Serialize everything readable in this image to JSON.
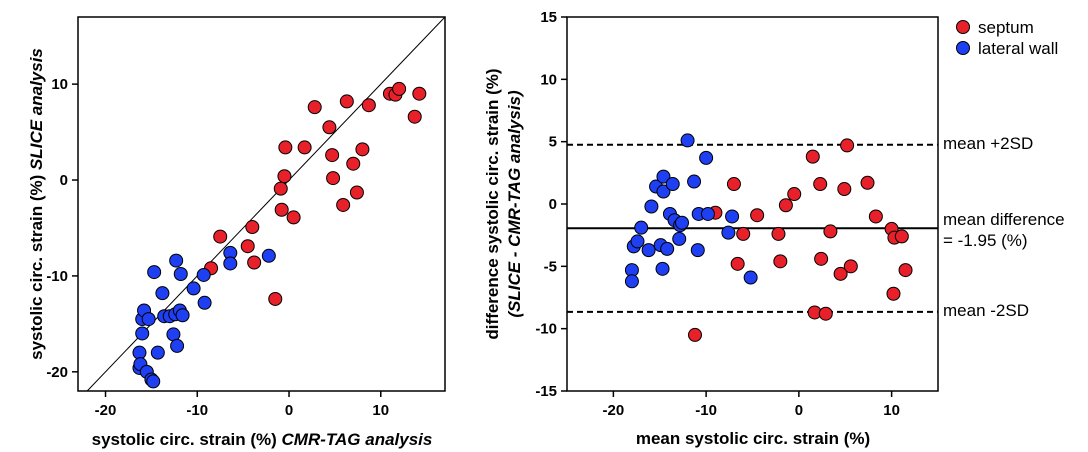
{
  "chart_data": [
    {
      "type": "scatter",
      "xlabel": {
        "main": "systolic circ. strain (%) ",
        "italic": "CMR-TAG analysis"
      },
      "ylabel": {
        "main": "systolic circ. strain (%) ",
        "italic": "SLICE analysis"
      },
      "xlim": [
        -23,
        17
      ],
      "ylim": [
        -22,
        17
      ],
      "xticks": [
        -20,
        -10,
        0,
        10
      ],
      "yticks": [
        -20,
        -10,
        0,
        10
      ],
      "identity_line": true,
      "series": [
        {
          "color": "#e8202a",
          "points": [
            [
              -7.5,
              -5.9
            ],
            [
              -8.5,
              -9.2
            ],
            [
              -4.0,
              -4.9
            ],
            [
              -4.5,
              -6.9
            ],
            [
              -3.8,
              -8.6
            ],
            [
              -1.5,
              -12.4
            ],
            [
              -0.9,
              -0.9
            ],
            [
              -0.8,
              -3.1
            ],
            [
              -0.5,
              0.4
            ],
            [
              -0.4,
              3.4
            ],
            [
              0.5,
              -3.9
            ],
            [
              1.7,
              3.4
            ],
            [
              2.8,
              7.6
            ],
            [
              4.4,
              5.5
            ],
            [
              4.7,
              2.6
            ],
            [
              4.8,
              0.2
            ],
            [
              5.9,
              -2.6
            ],
            [
              6.3,
              8.2
            ],
            [
              7.0,
              1.7
            ],
            [
              7.4,
              -1.3
            ],
            [
              8.0,
              3.2
            ],
            [
              8.7,
              7.8
            ],
            [
              11.0,
              9.0
            ],
            [
              11.6,
              8.9
            ],
            [
              12.0,
              9.5
            ],
            [
              13.7,
              6.6
            ],
            [
              14.2,
              9.0
            ]
          ]
        },
        {
          "color": "#1f3ff2",
          "points": [
            [
              -16.3,
              -18.0
            ],
            [
              -16.3,
              -19.6
            ],
            [
              -16.2,
              -19.2
            ],
            [
              -16.0,
              -16.0
            ],
            [
              -16.0,
              -14.5
            ],
            [
              -15.8,
              -13.6
            ],
            [
              -15.5,
              -20.0
            ],
            [
              -15.3,
              -14.5
            ],
            [
              -15.0,
              -20.8
            ],
            [
              -14.8,
              -21.0
            ],
            [
              -14.7,
              -9.6
            ],
            [
              -14.3,
              -18.0
            ],
            [
              -13.8,
              -11.8
            ],
            [
              -13.6,
              -14.2
            ],
            [
              -13.0,
              -14.2
            ],
            [
              -12.6,
              -16.1
            ],
            [
              -12.4,
              -14.0
            ],
            [
              -12.3,
              -8.4
            ],
            [
              -12.2,
              -17.3
            ],
            [
              -11.9,
              -13.6
            ],
            [
              -11.8,
              -9.8
            ],
            [
              -11.6,
              -14.1
            ],
            [
              -10.4,
              -11.3
            ],
            [
              -9.3,
              -9.9
            ],
            [
              -9.2,
              -12.8
            ],
            [
              -6.4,
              -7.6
            ],
            [
              -6.4,
              -8.7
            ],
            [
              -2.2,
              -7.9
            ]
          ]
        }
      ]
    },
    {
      "type": "scatter",
      "xlabel": "mean systolic circ. strain (%)",
      "ylabel": {
        "line1": "difference systolic circ. strain (%)",
        "line2": "(SLICE - CMR-TAG analysis)"
      },
      "xlim": [
        -25,
        15
      ],
      "ylim": [
        -15,
        15
      ],
      "xticks": [
        -20,
        -10,
        0,
        10
      ],
      "yticks": [
        -15,
        -10,
        -5,
        0,
        5,
        10,
        15
      ],
      "legend_position": "outside-top-right",
      "reference_lines": [
        {
          "y": 4.75,
          "style": "dashed",
          "label": "mean +2SD"
        },
        {
          "y": -1.95,
          "style": "solid",
          "label": "mean difference",
          "label2": "= -1.95 (%)"
        },
        {
          "y": -8.65,
          "style": "dashed",
          "label": "mean -2SD"
        }
      ],
      "series": [
        {
          "name": "septum",
          "color": "#e8202a",
          "points": [
            [
              -9.0,
              -0.7
            ],
            [
              -7.0,
              1.6
            ],
            [
              -6.6,
              -4.8
            ],
            [
              -6.0,
              -2.4
            ],
            [
              -11.2,
              -10.5
            ],
            [
              -4.5,
              -0.9
            ],
            [
              -2.2,
              -2.4
            ],
            [
              -2.0,
              -4.6
            ],
            [
              -1.4,
              -0.1
            ],
            [
              -0.5,
              0.8
            ],
            [
              1.5,
              3.8
            ],
            [
              1.7,
              -8.7
            ],
            [
              2.3,
              1.6
            ],
            [
              2.4,
              -4.4
            ],
            [
              2.9,
              -8.8
            ],
            [
              3.4,
              -2.2
            ],
            [
              4.5,
              -5.6
            ],
            [
              4.9,
              1.2
            ],
            [
              5.2,
              4.7
            ],
            [
              5.6,
              -5.0
            ],
            [
              7.4,
              1.7
            ],
            [
              8.3,
              -1.0
            ],
            [
              10.0,
              -2.0
            ],
            [
              10.2,
              -7.2
            ],
            [
              10.3,
              -2.7
            ],
            [
              11.1,
              -2.6
            ],
            [
              11.5,
              -5.3
            ]
          ]
        },
        {
          "name": "lateral wall",
          "color": "#1f3ff2",
          "points": [
            [
              -18.0,
              -5.3
            ],
            [
              -18.0,
              -6.2
            ],
            [
              -17.8,
              -3.4
            ],
            [
              -17.4,
              -3.0
            ],
            [
              -17.0,
              -1.9
            ],
            [
              -16.2,
              -3.7
            ],
            [
              -15.9,
              -0.2
            ],
            [
              -15.4,
              1.4
            ],
            [
              -14.9,
              -3.3
            ],
            [
              -14.7,
              -5.2
            ],
            [
              -14.6,
              1.0
            ],
            [
              -14.6,
              2.2
            ],
            [
              -14.2,
              -3.6
            ],
            [
              -13.9,
              -0.8
            ],
            [
              -13.6,
              1.6
            ],
            [
              -13.4,
              -1.3
            ],
            [
              -12.9,
              -2.8
            ],
            [
              -12.8,
              -1.7
            ],
            [
              -12.6,
              -1.5
            ],
            [
              -12.0,
              5.1
            ],
            [
              -11.3,
              1.8
            ],
            [
              -10.9,
              -3.7
            ],
            [
              -10.8,
              -0.8
            ],
            [
              -10.0,
              3.7
            ],
            [
              -9.8,
              -0.8
            ],
            [
              -7.6,
              -2.3
            ],
            [
              -7.2,
              -1.0
            ],
            [
              -5.2,
              -5.9
            ]
          ]
        }
      ]
    }
  ]
}
